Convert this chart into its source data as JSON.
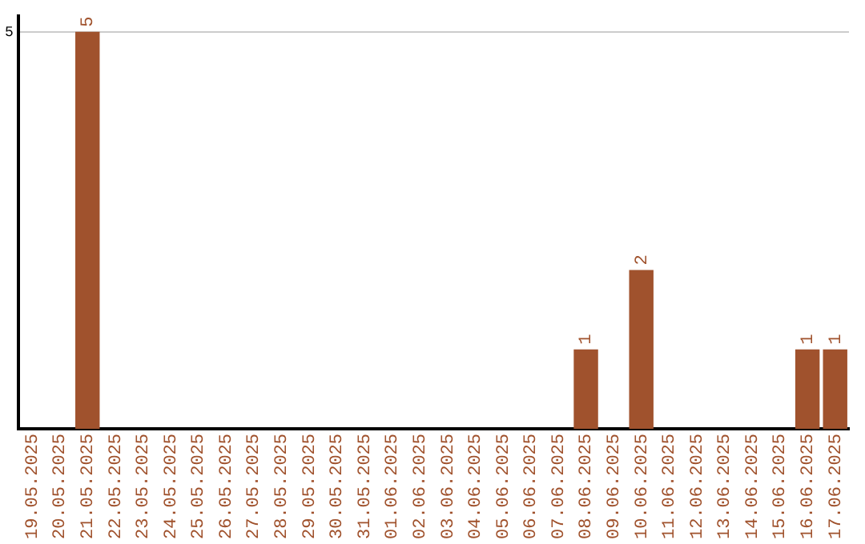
{
  "chart_data": {
    "type": "bar",
    "categories": [
      "19.05.2025",
      "20.05.2025",
      "21.05.2025",
      "22.05.2025",
      "23.05.2025",
      "24.05.2025",
      "25.05.2025",
      "26.05.2025",
      "27.05.2025",
      "28.05.2025",
      "29.05.2025",
      "30.05.2025",
      "31.05.2025",
      "01.06.2025",
      "02.06.2025",
      "03.06.2025",
      "04.06.2025",
      "05.06.2025",
      "06.06.2025",
      "07.06.2025",
      "08.06.2025",
      "09.06.2025",
      "10.06.2025",
      "11.06.2025",
      "12.06.2025",
      "13.06.2025",
      "14.06.2025",
      "15.06.2025",
      "16.06.2025",
      "17.06.2025"
    ],
    "values": [
      0,
      0,
      5,
      0,
      0,
      0,
      0,
      0,
      0,
      0,
      0,
      0,
      0,
      0,
      0,
      0,
      0,
      0,
      0,
      0,
      1,
      0,
      2,
      0,
      0,
      0,
      0,
      0,
      1,
      1
    ],
    "value_labels": [
      null,
      null,
      "5",
      null,
      null,
      null,
      null,
      null,
      null,
      null,
      null,
      null,
      null,
      null,
      null,
      null,
      null,
      null,
      null,
      null,
      "1",
      null,
      "2",
      null,
      null,
      null,
      null,
      null,
      "1",
      "1"
    ],
    "color": "#a0522d",
    "ylim": [
      0,
      5.2
    ],
    "yticks": [
      5
    ],
    "grid": "y",
    "legend": false
  }
}
